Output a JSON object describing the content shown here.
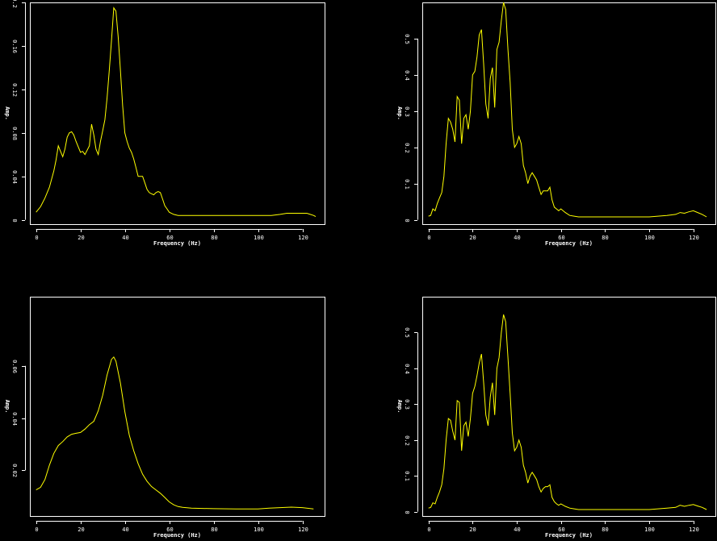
{
  "chart_data": [
    {
      "type": "line",
      "xlabel": "Frequency (Hz)",
      "ylabel": "Amp.",
      "xlim": [
        -2.8,
        130
      ],
      "ylim": [
        -0.004,
        0.2
      ],
      "xticks": [
        0,
        20,
        40,
        60,
        80,
        100,
        120
      ],
      "yticks": [
        0,
        0.04,
        0.08,
        0.12,
        0.16,
        0.2
      ],
      "xtick_labels": [
        "0",
        "20",
        "40",
        "60",
        "80",
        "100",
        "120"
      ],
      "ytick_labels": [
        "0",
        "0.04",
        "0.08",
        "0.12",
        "0.16",
        "0.2"
      ],
      "series": [
        {
          "color": "#ffff00",
          "x": [
            0,
            2,
            4,
            6,
            8,
            9,
            10,
            12,
            13,
            14,
            15,
            16,
            17,
            18,
            20,
            21,
            22,
            24,
            25,
            26,
            27,
            28,
            29,
            30,
            31,
            32,
            33,
            34,
            35,
            36,
            37,
            38,
            39,
            40,
            41,
            42,
            43,
            44,
            45,
            46,
            47,
            48,
            49,
            50,
            51,
            52,
            53,
            54,
            55,
            56,
            57,
            58,
            59,
            60,
            62,
            64,
            66,
            68,
            70,
            80,
            90,
            100,
            106,
            110,
            113,
            116,
            119,
            122,
            125,
            126
          ],
          "y": [
            0.007,
            0.012,
            0.02,
            0.03,
            0.045,
            0.055,
            0.068,
            0.058,
            0.065,
            0.076,
            0.08,
            0.081,
            0.078,
            0.072,
            0.062,
            0.063,
            0.06,
            0.068,
            0.088,
            0.078,
            0.065,
            0.06,
            0.072,
            0.082,
            0.092,
            0.112,
            0.138,
            0.165,
            0.195,
            0.192,
            0.168,
            0.138,
            0.105,
            0.08,
            0.072,
            0.066,
            0.062,
            0.056,
            0.048,
            0.04,
            0.04,
            0.04,
            0.034,
            0.028,
            0.025,
            0.024,
            0.023,
            0.025,
            0.026,
            0.025,
            0.019,
            0.013,
            0.01,
            0.007,
            0.005,
            0.004,
            0.004,
            0.004,
            0.004,
            0.004,
            0.004,
            0.004,
            0.004,
            0.005,
            0.006,
            0.006,
            0.006,
            0.006,
            0.004,
            0.003
          ]
        }
      ]
    },
    {
      "type": "line",
      "xlabel": "Frequency (Hz)",
      "ylabel": "Amp.",
      "xlim": [
        -2.8,
        130
      ],
      "ylim": [
        -0.012,
        0.6
      ],
      "xticks": [
        0,
        20,
        40,
        60,
        80,
        100,
        120
      ],
      "yticks": [
        0,
        0.1,
        0.2,
        0.3,
        0.4,
        0.5
      ],
      "xtick_labels": [
        "0",
        "20",
        "40",
        "60",
        "80",
        "100",
        "120"
      ],
      "ytick_labels": [
        "0",
        "0.1",
        "0.2",
        "0.3",
        "0.4",
        "0.5"
      ],
      "series": [
        {
          "color": "#ffff00",
          "x": [
            0,
            1,
            2,
            3,
            4,
            5,
            6,
            7,
            8,
            9,
            10,
            11,
            12,
            13,
            14,
            15,
            16,
            17,
            18,
            19,
            20,
            21,
            22,
            23,
            24,
            25,
            26,
            27,
            28,
            29,
            30,
            31,
            32,
            33,
            34,
            35,
            36,
            37,
            38,
            39,
            40,
            41,
            42,
            43,
            44,
            45,
            46,
            47,
            48,
            49,
            50,
            51,
            52,
            53,
            54,
            55,
            56,
            57,
            58,
            59,
            60,
            62,
            64,
            66,
            68,
            70,
            72,
            74,
            76,
            80,
            90,
            100,
            104,
            108,
            112,
            114,
            116,
            118,
            120,
            122,
            124,
            126
          ],
          "y": [
            0.01,
            0.012,
            0.03,
            0.025,
            0.045,
            0.06,
            0.075,
            0.12,
            0.21,
            0.28,
            0.27,
            0.25,
            0.215,
            0.34,
            0.33,
            0.21,
            0.28,
            0.29,
            0.25,
            0.3,
            0.4,
            0.41,
            0.45,
            0.51,
            0.525,
            0.43,
            0.32,
            0.28,
            0.39,
            0.42,
            0.31,
            0.47,
            0.49,
            0.55,
            0.6,
            0.58,
            0.47,
            0.38,
            0.25,
            0.2,
            0.21,
            0.23,
            0.21,
            0.15,
            0.13,
            0.1,
            0.12,
            0.13,
            0.12,
            0.11,
            0.09,
            0.07,
            0.08,
            0.08,
            0.08,
            0.09,
            0.055,
            0.035,
            0.03,
            0.025,
            0.03,
            0.02,
            0.012,
            0.01,
            0.008,
            0.008,
            0.008,
            0.008,
            0.008,
            0.008,
            0.008,
            0.008,
            0.01,
            0.012,
            0.015,
            0.02,
            0.018,
            0.022,
            0.025,
            0.02,
            0.015,
            0.008
          ]
        }
      ]
    },
    {
      "type": "line",
      "xlabel": "Frequency (Hz)",
      "ylabel": "Amp.",
      "xlim": [
        -2.8,
        130
      ],
      "ylim": [
        0.0025,
        0.0865
      ],
      "xticks": [
        0,
        20,
        40,
        60,
        80,
        100,
        120
      ],
      "yticks": [
        0.02,
        0.04,
        0.06
      ],
      "xtick_labels": [
        "0",
        "20",
        "40",
        "60",
        "80",
        "100",
        "120"
      ],
      "ytick_labels": [
        "0.02",
        "0.04",
        "0.06"
      ],
      "series": [
        {
          "color": "#ffff00",
          "x": [
            0,
            2,
            4,
            6,
            8,
            10,
            12,
            14,
            16,
            18,
            20,
            22,
            24,
            26,
            28,
            30,
            32,
            34,
            35,
            36,
            38,
            40,
            42,
            44,
            46,
            48,
            50,
            52,
            54,
            56,
            58,
            60,
            62,
            64,
            66,
            70,
            80,
            90,
            100,
            105,
            110,
            115,
            120,
            125
          ],
          "y": [
            0.0125,
            0.0135,
            0.0165,
            0.022,
            0.0265,
            0.0295,
            0.031,
            0.0328,
            0.0338,
            0.0342,
            0.0345,
            0.0358,
            0.0375,
            0.0388,
            0.0428,
            0.0488,
            0.0565,
            0.0625,
            0.0634,
            0.0618,
            0.0535,
            0.0425,
            0.0335,
            0.0275,
            0.0225,
            0.0185,
            0.0158,
            0.0138,
            0.0125,
            0.0112,
            0.0096,
            0.0079,
            0.0068,
            0.0061,
            0.0058,
            0.0055,
            0.0053,
            0.0052,
            0.0052,
            0.0055,
            0.0057,
            0.0059,
            0.0057,
            0.0052
          ]
        }
      ]
    },
    {
      "type": "line",
      "xlabel": "Frequency (Hz)",
      "ylabel": "Amp.",
      "xlim": [
        -2.8,
        130
      ],
      "ylim": [
        -0.012,
        0.6
      ],
      "xticks": [
        0,
        20,
        40,
        60,
        80,
        100,
        120
      ],
      "yticks": [
        0,
        0.1,
        0.2,
        0.3,
        0.4,
        0.5
      ],
      "xtick_labels": [
        "0",
        "20",
        "40",
        "60",
        "80",
        "100",
        "120"
      ],
      "ytick_labels": [
        "0",
        "0.1",
        "0.2",
        "0.3",
        "0.4",
        "0.5"
      ],
      "series": [
        {
          "color": "#ffff00",
          "x": [
            0,
            1,
            2,
            3,
            4,
            5,
            6,
            7,
            8,
            9,
            10,
            11,
            12,
            13,
            14,
            15,
            16,
            17,
            18,
            19,
            20,
            21,
            22,
            23,
            24,
            25,
            26,
            27,
            28,
            29,
            30,
            31,
            32,
            33,
            34,
            35,
            36,
            37,
            38,
            39,
            40,
            41,
            42,
            43,
            44,
            45,
            46,
            47,
            48,
            49,
            50,
            51,
            52,
            53,
            54,
            55,
            56,
            57,
            58,
            59,
            60,
            62,
            64,
            66,
            68,
            70,
            72,
            74,
            76,
            80,
            90,
            100,
            104,
            108,
            112,
            114,
            116,
            118,
            120,
            122,
            124,
            126
          ],
          "y": [
            0.01,
            0.012,
            0.025,
            0.022,
            0.04,
            0.055,
            0.075,
            0.12,
            0.2,
            0.26,
            0.255,
            0.225,
            0.2,
            0.31,
            0.305,
            0.17,
            0.24,
            0.25,
            0.21,
            0.26,
            0.33,
            0.35,
            0.38,
            0.415,
            0.44,
            0.36,
            0.27,
            0.24,
            0.32,
            0.36,
            0.27,
            0.4,
            0.43,
            0.5,
            0.55,
            0.53,
            0.43,
            0.33,
            0.22,
            0.17,
            0.18,
            0.2,
            0.18,
            0.13,
            0.11,
            0.08,
            0.1,
            0.11,
            0.1,
            0.09,
            0.07,
            0.055,
            0.065,
            0.07,
            0.07,
            0.075,
            0.04,
            0.028,
            0.022,
            0.018,
            0.022,
            0.015,
            0.01,
            0.008,
            0.006,
            0.006,
            0.006,
            0.006,
            0.006,
            0.006,
            0.006,
            0.006,
            0.008,
            0.01,
            0.012,
            0.018,
            0.015,
            0.018,
            0.02,
            0.016,
            0.012,
            0.006
          ]
        }
      ]
    }
  ]
}
